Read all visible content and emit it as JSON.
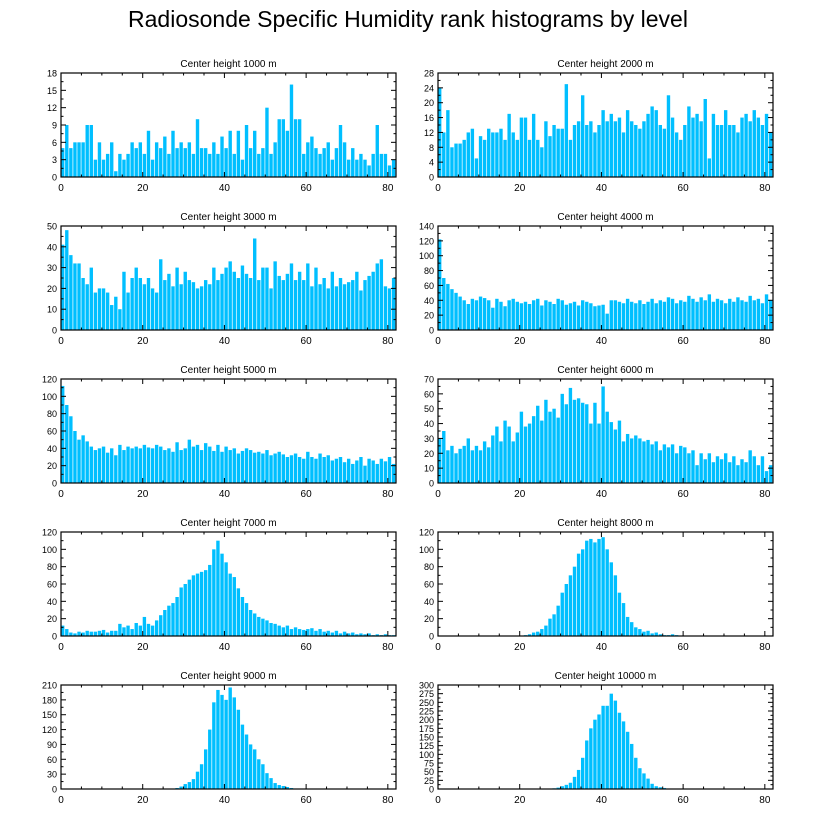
{
  "figure_title": "Radiosonde Specific Humidity rank histograms by level",
  "bar_color": "#00BFFF",
  "chart_data": [
    {
      "type": "bar",
      "title": "Center height 1000 m",
      "xlim": [
        0,
        82
      ],
      "ylim": [
        0,
        18
      ],
      "yticks": [
        0,
        3,
        6,
        9,
        12,
        15,
        18
      ],
      "xticks": [
        0,
        20,
        40,
        60,
        80
      ],
      "values": [
        5,
        9,
        5,
        6,
        6,
        6,
        9,
        9,
        3,
        6,
        3,
        4,
        6,
        1,
        4,
        3,
        4,
        6,
        5,
        6,
        4,
        8,
        3,
        6,
        5,
        7,
        4,
        8,
        5,
        6,
        5,
        6,
        4,
        10,
        5,
        5,
        4,
        6,
        4,
        7,
        5,
        8,
        4,
        8,
        3,
        9,
        5,
        8,
        4,
        5,
        12,
        4,
        6,
        10,
        10,
        8,
        16,
        10,
        10,
        4,
        6,
        7,
        5,
        4,
        5,
        6,
        3,
        5,
        9,
        6,
        3,
        5,
        3,
        4,
        3,
        2,
        4,
        9,
        4,
        4,
        2,
        3
      ]
    },
    {
      "type": "bar",
      "title": "Center height 2000 m",
      "xlim": [
        0,
        82
      ],
      "ylim": [
        0,
        28
      ],
      "yticks": [
        0,
        4,
        8,
        12,
        16,
        20,
        24,
        28
      ],
      "xticks": [
        0,
        20,
        40,
        60,
        80
      ],
      "values": [
        24,
        12,
        18,
        8,
        9,
        9,
        10,
        12,
        13,
        5,
        11,
        10,
        13,
        12,
        12,
        13,
        10,
        17,
        12,
        10,
        16,
        16,
        10,
        17,
        10,
        8,
        15,
        11,
        14,
        13,
        13,
        25,
        10,
        14,
        15,
        22,
        14,
        15,
        12,
        14,
        18,
        15,
        17,
        15,
        16,
        12,
        18,
        15,
        14,
        13,
        15,
        17,
        19,
        18,
        14,
        13,
        22,
        16,
        12,
        10,
        14,
        19,
        16,
        17,
        15,
        21,
        5,
        17,
        14,
        14,
        18,
        14,
        14,
        12,
        16,
        17,
        15,
        18,
        16,
        14,
        17,
        12
      ]
    },
    {
      "type": "bar",
      "title": "Center height 3000 m",
      "xlim": [
        0,
        82
      ],
      "ylim": [
        0,
        50
      ],
      "yticks": [
        0,
        10,
        20,
        30,
        40,
        50
      ],
      "xticks": [
        0,
        20,
        40,
        60,
        80
      ],
      "values": [
        41,
        48,
        36,
        32,
        32,
        25,
        22,
        30,
        18,
        20,
        20,
        18,
        12,
        16,
        10,
        28,
        18,
        25,
        30,
        25,
        22,
        25,
        20,
        18,
        34,
        24,
        27,
        21,
        30,
        22,
        28,
        24,
        23,
        20,
        21,
        24,
        22,
        30,
        24,
        27,
        30,
        33,
        28,
        25,
        31,
        27,
        25,
        44,
        24,
        30,
        30,
        20,
        33,
        26,
        24,
        27,
        32,
        24,
        28,
        24,
        32,
        21,
        30,
        22,
        25,
        20,
        28,
        21,
        25,
        22,
        23,
        24,
        28,
        19,
        24,
        26,
        28,
        32,
        34,
        21,
        20,
        25
      ]
    },
    {
      "type": "bar",
      "title": "Center height 4000 m",
      "xlim": [
        0,
        82
      ],
      "ylim": [
        0,
        140
      ],
      "yticks": [
        0,
        20,
        40,
        60,
        80,
        100,
        120,
        140
      ],
      "xticks": [
        0,
        20,
        40,
        60,
        80
      ],
      "values": [
        122,
        70,
        62,
        55,
        50,
        45,
        40,
        35,
        42,
        40,
        45,
        43,
        40,
        30,
        42,
        38,
        32,
        40,
        42,
        38,
        36,
        38,
        35,
        40,
        42,
        33,
        40,
        38,
        35,
        42,
        40,
        34,
        36,
        38,
        33,
        40,
        38,
        36,
        32,
        33,
        34,
        22,
        40,
        40,
        38,
        36,
        42,
        38,
        36,
        40,
        35,
        38,
        42,
        36,
        40,
        38,
        44,
        42,
        36,
        40,
        38,
        46,
        42,
        38,
        44,
        40,
        48,
        38,
        42,
        40,
        36,
        42,
        38,
        44,
        40,
        38,
        46,
        40,
        42,
        36,
        48,
        40
      ]
    },
    {
      "type": "bar",
      "title": "Center height 5000 m",
      "xlim": [
        0,
        82
      ],
      "ylim": [
        0,
        120
      ],
      "yticks": [
        0,
        20,
        40,
        60,
        80,
        100,
        120
      ],
      "xticks": [
        0,
        20,
        40,
        60,
        80
      ],
      "values": [
        112,
        90,
        77,
        60,
        50,
        55,
        48,
        42,
        38,
        40,
        42,
        35,
        40,
        32,
        44,
        38,
        42,
        40,
        42,
        40,
        44,
        41,
        40,
        44,
        42,
        38,
        40,
        36,
        47,
        38,
        40,
        50,
        42,
        44,
        38,
        46,
        42,
        37,
        44,
        36,
        42,
        38,
        40,
        34,
        37,
        40,
        38,
        35,
        36,
        34,
        38,
        32,
        34,
        36,
        33,
        30,
        32,
        34,
        30,
        28,
        36,
        30,
        28,
        34,
        30,
        32,
        26,
        28,
        30,
        24,
        28,
        22,
        26,
        30,
        20,
        28,
        26,
        22,
        28,
        25,
        30,
        22
      ]
    },
    {
      "type": "bar",
      "title": "Center height 6000 m",
      "xlim": [
        0,
        82
      ],
      "ylim": [
        0,
        70
      ],
      "yticks": [
        0,
        10,
        20,
        30,
        40,
        50,
        60,
        70
      ],
      "xticks": [
        0,
        20,
        40,
        60,
        80
      ],
      "values": [
        30,
        35,
        22,
        25,
        20,
        23,
        25,
        30,
        22,
        25,
        22,
        28,
        24,
        32,
        38,
        28,
        42,
        38,
        28,
        34,
        48,
        38,
        40,
        45,
        52,
        42,
        56,
        48,
        50,
        44,
        60,
        53,
        64,
        56,
        57,
        54,
        53,
        40,
        54,
        40,
        65,
        48,
        41,
        36,
        42,
        28,
        33,
        30,
        32,
        30,
        28,
        29,
        26,
        28,
        22,
        26,
        24,
        26,
        20,
        25,
        24,
        20,
        22,
        12,
        20,
        16,
        20,
        14,
        18,
        16,
        20,
        14,
        18,
        12,
        16,
        14,
        22,
        18,
        12,
        18,
        8,
        12
      ]
    },
    {
      "type": "bar",
      "title": "Center height 7000 m",
      "xlim": [
        0,
        82
      ],
      "ylim": [
        0,
        120
      ],
      "yticks": [
        0,
        20,
        40,
        60,
        80,
        100,
        120
      ],
      "xticks": [
        0,
        20,
        40,
        60,
        80
      ],
      "values": [
        12,
        8,
        4,
        3,
        5,
        4,
        6,
        5,
        5,
        6,
        7,
        4,
        6,
        6,
        14,
        10,
        12,
        8,
        15,
        12,
        22,
        14,
        12,
        18,
        24,
        30,
        35,
        38,
        45,
        56,
        60,
        65,
        70,
        72,
        74,
        76,
        82,
        100,
        110,
        95,
        85,
        72,
        68,
        55,
        45,
        38,
        30,
        26,
        22,
        20,
        18,
        15,
        14,
        12,
        10,
        12,
        8,
        10,
        8,
        7,
        8,
        9,
        6,
        8,
        5,
        6,
        4,
        6,
        3,
        5,
        3,
        4,
        2,
        3,
        2,
        3,
        1,
        2,
        1,
        2,
        1,
        1
      ]
    },
    {
      "type": "bar",
      "title": "Center height 8000 m",
      "xlim": [
        0,
        82
      ],
      "ylim": [
        0,
        120
      ],
      "yticks": [
        0,
        20,
        40,
        60,
        80,
        100,
        120
      ],
      "xticks": [
        0,
        20,
        40,
        60,
        80
      ],
      "values": [
        0,
        0,
        0,
        0,
        0,
        0,
        0,
        0,
        0,
        0,
        0,
        0,
        0,
        0,
        0,
        0,
        0,
        0,
        0,
        0,
        0,
        1,
        2,
        4,
        5,
        8,
        12,
        20,
        25,
        35,
        50,
        60,
        70,
        80,
        95,
        100,
        110,
        112,
        108,
        112,
        114,
        100,
        85,
        70,
        50,
        38,
        22,
        16,
        10,
        8,
        5,
        6,
        3,
        4,
        2,
        1,
        1,
        2,
        1,
        0,
        0,
        0,
        0,
        0,
        0,
        0,
        0,
        0,
        0,
        0,
        0,
        0,
        0,
        0,
        0,
        0,
        0,
        0,
        0,
        0,
        0,
        0
      ]
    },
    {
      "type": "bar",
      "title": "Center height 9000 m",
      "xlim": [
        0,
        82
      ],
      "ylim": [
        0,
        210
      ],
      "yticks": [
        0,
        30,
        60,
        90,
        120,
        150,
        180,
        210
      ],
      "xticks": [
        0,
        20,
        40,
        60,
        80
      ],
      "values": [
        0,
        0,
        0,
        0,
        0,
        0,
        0,
        0,
        0,
        0,
        0,
        0,
        0,
        0,
        0,
        0,
        0,
        0,
        0,
        0,
        0,
        0,
        0,
        0,
        0,
        0,
        0,
        0,
        2,
        5,
        10,
        14,
        20,
        35,
        50,
        80,
        120,
        175,
        200,
        190,
        180,
        205,
        185,
        160,
        130,
        110,
        90,
        80,
        60,
        50,
        32,
        22,
        12,
        8,
        6,
        4,
        2,
        1,
        0,
        0,
        0,
        0,
        0,
        0,
        0,
        0,
        0,
        0,
        0,
        0,
        0,
        0,
        0,
        0,
        0,
        0,
        0,
        0,
        0,
        0,
        0,
        0
      ]
    },
    {
      "type": "bar",
      "title": "Center height 10000 m",
      "xlim": [
        0,
        82
      ],
      "ylim": [
        0,
        300
      ],
      "yticks": [
        0,
        25,
        50,
        75,
        100,
        125,
        150,
        175,
        200,
        225,
        250,
        275,
        300
      ],
      "xticks": [
        0,
        20,
        40,
        60,
        80
      ],
      "values": [
        0,
        0,
        0,
        0,
        0,
        0,
        0,
        0,
        0,
        0,
        0,
        0,
        0,
        0,
        0,
        0,
        0,
        0,
        0,
        0,
        0,
        0,
        0,
        0,
        0,
        0,
        0,
        0,
        2,
        4,
        8,
        12,
        18,
        35,
        55,
        90,
        140,
        175,
        200,
        215,
        240,
        240,
        275,
        255,
        220,
        195,
        165,
        130,
        90,
        60,
        45,
        30,
        15,
        8,
        5,
        3,
        1,
        0,
        0,
        0,
        0,
        0,
        0,
        0,
        0,
        0,
        0,
        0,
        0,
        0,
        0,
        0,
        0,
        0,
        0,
        0,
        0,
        0,
        0,
        0,
        0,
        0
      ]
    }
  ]
}
